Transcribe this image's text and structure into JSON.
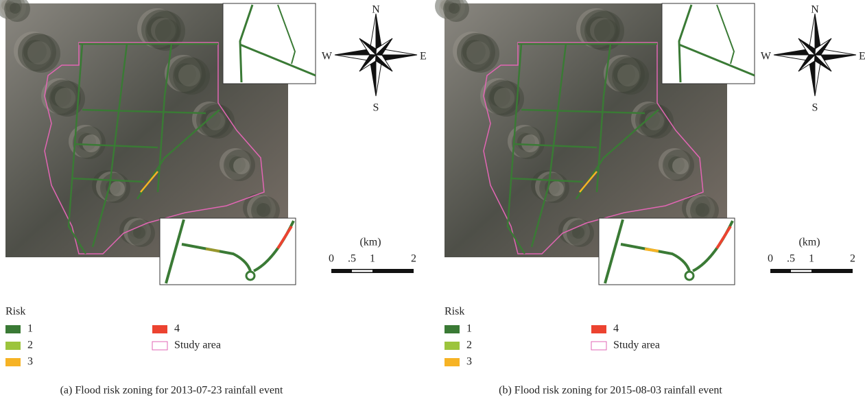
{
  "panels": [
    {
      "caption": "(a) Flood risk zoning for 2013-07-23 rainfall event",
      "compass": {
        "n": "N",
        "e": "E",
        "s": "S",
        "w": "W"
      },
      "scale": {
        "unit": "(km)",
        "ticks": [
          "0",
          ".5",
          "1",
          "2"
        ]
      },
      "legend": {
        "title": "Risk",
        "items": [
          {
            "label": "1",
            "color": "#3a7a35"
          },
          {
            "label": "2",
            "color": "#9cc43c"
          },
          {
            "label": "3",
            "color": "#f6b325"
          },
          {
            "label": "4",
            "color": "#ec4330"
          },
          {
            "label": "Study area",
            "color": "#e266b4"
          }
        ]
      }
    },
    {
      "caption": "(b) Flood risk zoning for 2015-08-03 rainfall event",
      "compass": {
        "n": "N",
        "e": "E",
        "s": "S",
        "w": "W"
      },
      "scale": {
        "unit": "(km)",
        "ticks": [
          "0",
          ".5",
          "1",
          "2"
        ]
      },
      "legend": {
        "title": "Risk",
        "items": [
          {
            "label": "1",
            "color": "#3a7a35"
          },
          {
            "label": "2",
            "color": "#9cc43c"
          },
          {
            "label": "3",
            "color": "#f6b325"
          },
          {
            "label": "4",
            "color": "#ec4330"
          },
          {
            "label": "Study area",
            "color": "#e266b4"
          }
        ]
      }
    }
  ]
}
